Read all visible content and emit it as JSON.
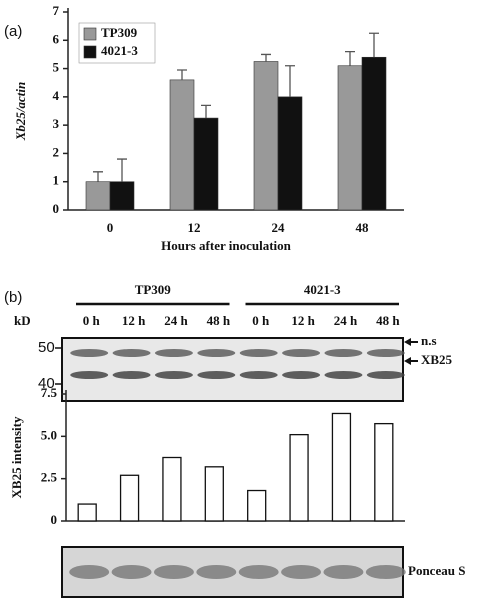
{
  "chart_data": [
    {
      "type": "bar",
      "panel_label": "(a)",
      "y_label": "Xb25/actin",
      "x_label": "Hours after inoculation",
      "categories": [
        "0",
        "12",
        "24",
        "48"
      ],
      "series": [
        {
          "name": "TP309",
          "color": "#999999",
          "values": [
            1.0,
            4.6,
            5.25,
            5.1
          ],
          "errors": [
            0.35,
            0.35,
            0.25,
            0.5
          ]
        },
        {
          "name": "4021-3",
          "color": "#111111",
          "values": [
            1.0,
            3.25,
            4.0,
            5.4
          ],
          "errors": [
            0.8,
            0.45,
            1.1,
            0.85
          ]
        }
      ],
      "ylim": [
        0,
        7
      ],
      "yticks": [
        0,
        1,
        2,
        3,
        4,
        5,
        6,
        7
      ],
      "legend": "upper left"
    },
    {
      "type": "bar",
      "panel_label": "(b)",
      "y_label": "XB25 intensity",
      "groups": [
        "TP309",
        "4021-3"
      ],
      "categories": [
        "0 h",
        "12 h",
        "24 h",
        "48 h",
        "0 h",
        "12 h",
        "24 h",
        "48 h"
      ],
      "values": [
        1.0,
        2.7,
        3.75,
        3.2,
        1.8,
        5.1,
        6.35,
        5.75
      ],
      "color": "#ffffff",
      "ylim": [
        0,
        7.5
      ],
      "yticks": [
        0,
        2.5,
        {
          "value": 5,
          "label": "5.0"
        },
        7.5
      ]
    }
  ],
  "blot": {
    "kd_label": "kD",
    "markers": [
      50,
      40
    ],
    "band_labels": [
      "n.s",
      "XB25"
    ],
    "stain_label": "Ponceau S"
  }
}
